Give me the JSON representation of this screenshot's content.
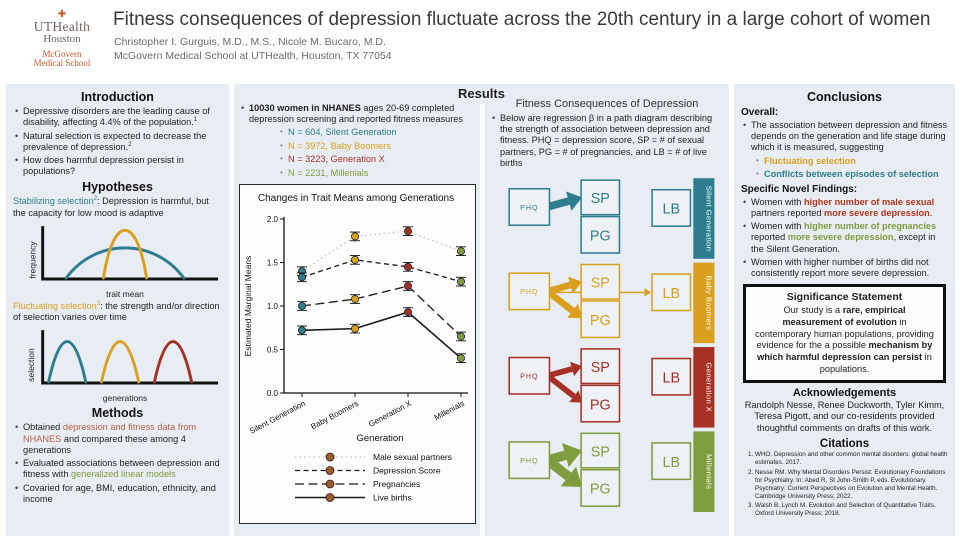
{
  "palette": {
    "teal": "#2e7d8e",
    "gold": "#d9a01f",
    "darkred": "#a53125",
    "olive": "#7f9c3e",
    "salmon": "#b4614a",
    "red": "#b5351c",
    "panel": "#e8edf4",
    "ink": "#1f1f1f",
    "legend_dot": "#a05a2d",
    "logo_orange": "#c75b2b",
    "logo_gray": "#6e635d"
  },
  "header": {
    "logo": {
      "cross": "✚",
      "line1": "UTHealth",
      "line2": "Houston",
      "line3": "McGovern",
      "line4": "Medical School"
    },
    "title": "Fitness consequences of depression fluctuate across the 20th century in a large cohort of women",
    "authors": "Christopher I. Gurguis, M.D., M.S., Nicole M. Bucaro, M.D.",
    "affiliation": "McGovern Medical School at UTHealth, Houston, TX 77054"
  },
  "introduction": {
    "title": "Introduction",
    "bullets": [
      [
        {
          "t": "Depressive disorders are the leading cause of disability, affecting 4.4% of the population."
        },
        {
          "t": "1",
          "s": true
        }
      ],
      [
        {
          "t": "Natural selection is expected to decrease the prevalence of depression."
        },
        {
          "t": "2",
          "s": true
        }
      ],
      [
        {
          "t": "How does harmful depression persist in populations?"
        }
      ]
    ]
  },
  "hypotheses": {
    "title": "Hypotheses",
    "stabilizing": [
      {
        "t": "Stabilizing selection",
        "c": "teal"
      },
      {
        "t": "2",
        "c": "teal",
        "s": true
      },
      {
        "t": ": Depression is harmful, but the capacity for low mood is adaptive"
      }
    ],
    "chart1": {
      "ylabel": "frequency",
      "xlabel": "trait mean"
    },
    "fluctuating": [
      {
        "t": "Fluctuating selection",
        "c": "gold"
      },
      {
        "t": "3",
        "c": "gold",
        "s": true
      },
      {
        "t": ": the strength and/or direction of selection varies over time"
      }
    ],
    "chart2": {
      "ylabel": "selection",
      "xlabel": "generations"
    }
  },
  "methods": {
    "title": "Methods",
    "bullets": [
      [
        {
          "t": "Obtained "
        },
        {
          "t": "depression and fitness data from NHANES",
          "c": "salmon"
        },
        {
          "t": " and compared these among 4 generations"
        }
      ],
      [
        {
          "t": "Evaluated associations between depression and fitness with "
        },
        {
          "t": "generalized linear models",
          "c": "olive"
        }
      ],
      [
        {
          "t": "Covaried for age, BMI, education, ethnicity, and income"
        }
      ]
    ]
  },
  "results": {
    "title": "Results",
    "main_bullet": [
      {
        "t": "10030 women in NHANES",
        "b": true
      },
      {
        "t": " ages 20-69 completed depression screening and reported fitness measures"
      }
    ],
    "n_items": [
      [
        {
          "t": "N = 604, Silent Generation",
          "c": "teal"
        }
      ],
      [
        {
          "t": "N = 3972, Baby Boomers",
          "c": "gold"
        }
      ],
      [
        {
          "t": "N = 3223, Generation X",
          "c": "darkred"
        }
      ],
      [
        {
          "t": "N = 2231, Millenials",
          "c": "olive"
        }
      ]
    ]
  },
  "chart_data": {
    "type": "line",
    "title": "Changes in Trait Means among Generations",
    "categories": [
      "Silent Generation",
      "Baby Boomers",
      "Generation X",
      "Millenials"
    ],
    "series": [
      {
        "name": "Male sexual partners",
        "style": "dotted",
        "values": [
          1.4,
          1.8,
          1.86,
          1.63
        ]
      },
      {
        "name": "Depression Score",
        "style": "dashed",
        "values": [
          1.33,
          1.53,
          1.45,
          1.28
        ]
      },
      {
        "name": "Pregnancies",
        "style": "longdash",
        "values": [
          1.0,
          1.08,
          1.23,
          0.65
        ]
      },
      {
        "name": "Live births",
        "style": "solid",
        "values": [
          0.72,
          0.74,
          0.93,
          0.4
        ]
      }
    ],
    "point_colors_by_category": [
      "#2e7d8e",
      "#d9a01f",
      "#a53125",
      "#7f9c3e"
    ],
    "error": 0.05,
    "ylabel": "Estimated Marginal Means",
    "xlabel": "Generation",
    "ylim": [
      0,
      2
    ],
    "yticks": [
      "0.0",
      "0.5",
      "1.0",
      "1.5",
      "2.0"
    ],
    "legend_position": "bottom"
  },
  "path_diagram": {
    "title": "Fitness Consequences of Depression",
    "description": [
      {
        "t": "Below are regression β in a path diagram describing the strength of association between depression and fitness. PHQ = depression score, SP = # of sexual partners, PG = # of pregnancies, and LB = # of live births"
      }
    ],
    "box_labels": {
      "phq": "PHQ",
      "sp": "SP",
      "pg": "PG",
      "lb": "LB"
    },
    "groups": [
      {
        "name": "Silent Generation",
        "color": "#2e7d8e",
        "arrows": [
          {
            "to": "SP",
            "w": 8
          }
        ]
      },
      {
        "name": "Baby Boomers",
        "color": "#d9a01f",
        "arrows": [
          {
            "to": "SP",
            "w": 7
          },
          {
            "to": "PG",
            "w": 7
          },
          {
            "to": "LB",
            "w": 1.6
          }
        ]
      },
      {
        "name": "Generation X",
        "color": "#a53125",
        "arrows": [
          {
            "to": "SP",
            "w": 6
          },
          {
            "to": "PG",
            "w": 6
          }
        ]
      },
      {
        "name": "Millenials",
        "color": "#7f9c3e",
        "arrows": [
          {
            "to": "SP",
            "w": 10
          },
          {
            "to": "PG",
            "w": 10
          }
        ]
      }
    ]
  },
  "conclusions": {
    "title": "Conclusions",
    "overall_label": "Overall:",
    "overall_bullet": [
      {
        "t": "The association between depression and fitness depends on the generation and life stage during which it is measured, suggesting"
      }
    ],
    "overall_subs": [
      [
        {
          "t": "Fluctuating selection",
          "c": "gold",
          "b": true
        }
      ],
      [
        {
          "t": "Conflicts between episodes of selection",
          "c": "teal",
          "b": true
        }
      ]
    ],
    "findings_label": "Specific Novel Findings:",
    "findings": [
      [
        {
          "t": "Women with "
        },
        {
          "t": "higher number of male sexual",
          "c": "red",
          "b": true
        },
        {
          "t": " partners reported "
        },
        {
          "t": "more severe depression",
          "c": "red",
          "b": true
        },
        {
          "t": "."
        }
      ],
      [
        {
          "t": "Women with "
        },
        {
          "t": "higher number of pregnancies",
          "c": "olive",
          "b": true
        },
        {
          "t": " reported "
        },
        {
          "t": "more severe depression",
          "c": "olive",
          "b": true
        },
        {
          "t": ", except in the Silent Generation."
        }
      ],
      [
        {
          "t": "Women with higher number of births did not consistently report more severe depression."
        }
      ]
    ]
  },
  "significance": {
    "title": "Significance Statement",
    "body": [
      {
        "t": "Our study is a "
      },
      {
        "t": "rare, empirical measurement of evolution",
        "b": true
      },
      {
        "t": " in contemporary human populations, providing evidence for the a possible "
      },
      {
        "t": "mechanism by which harmful depression can persist",
        "b": true
      },
      {
        "t": " in populations."
      }
    ]
  },
  "acknowledgements": {
    "title": "Acknowledgements",
    "body": "Randolph Nesse, Renee Duckworth, Tyler Kimm, Teresa Pigott, and our co-residents provided thoughtful comments on drafts of this work."
  },
  "citations": {
    "title": "Citations",
    "items": [
      "WHO. Depression and other common mental disorders: global health estimates. 2017.",
      "Nesse RM. Why Mental Disorders Persist: Evolutionary Foundations for Psychiatry. In: Abed R, St John-Smith P, eds. Evolutionary Psychiatry: Current Perspectives on Evolution and Mental Health. Cambridge University Press; 2022.",
      "Walsh B, Lynch M. Evolution and Selection of Quantitative Traits. Oxford University Press; 2018."
    ]
  }
}
